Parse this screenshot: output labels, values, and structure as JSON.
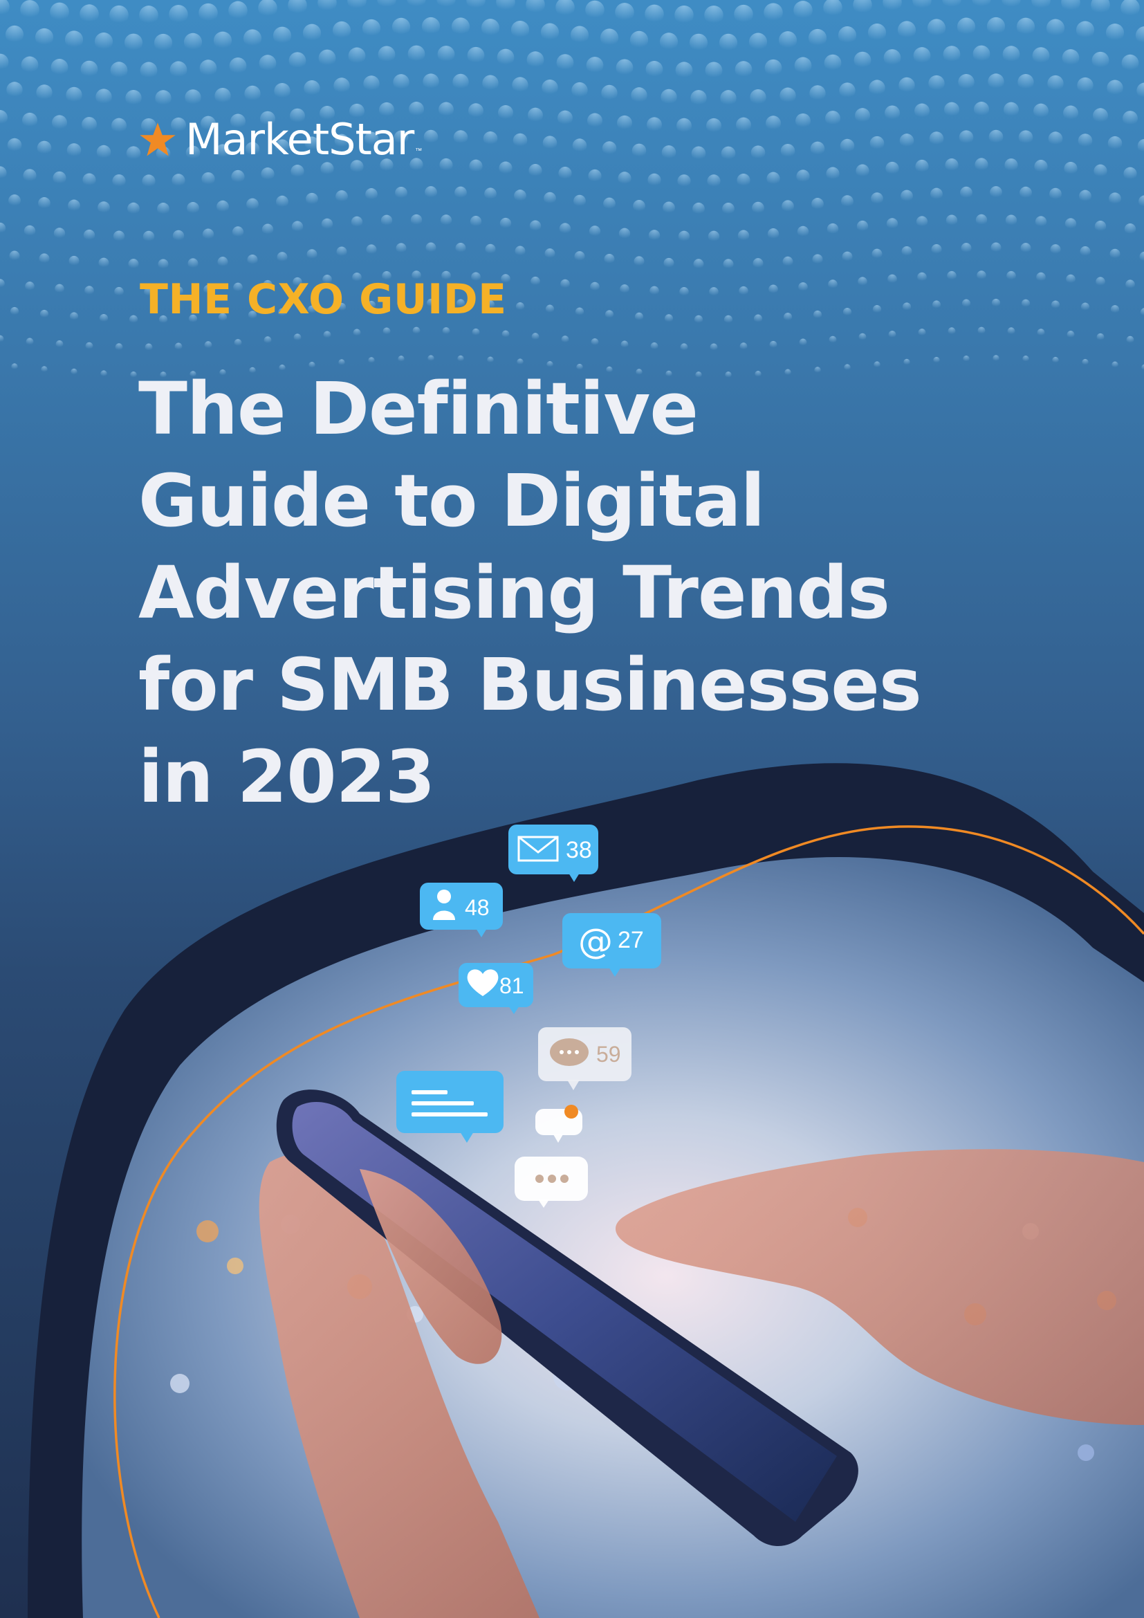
{
  "brand": {
    "name": "MarketStar",
    "tm": "™"
  },
  "kicker": "THE CXO GUIDE",
  "title_lines": [
    "The Definitive",
    "Guide to Digital",
    "Advertising Trends",
    "for SMB Businesses",
    "in 2023"
  ],
  "notifications": {
    "mail": "38",
    "user": "48",
    "mention": "27",
    "like": "81",
    "comment": "59"
  },
  "colors": {
    "accent_orange": "#f08a24",
    "kicker_yellow": "#f5b127",
    "bubble_blue": "#4cb8f2",
    "background_top": "#3f8cc4",
    "background_bottom": "#1f3050"
  },
  "icons": [
    "star-icon",
    "envelope-icon",
    "user-icon",
    "at-icon",
    "heart-icon",
    "chat-icon",
    "text-lines-icon",
    "dots-icon"
  ]
}
